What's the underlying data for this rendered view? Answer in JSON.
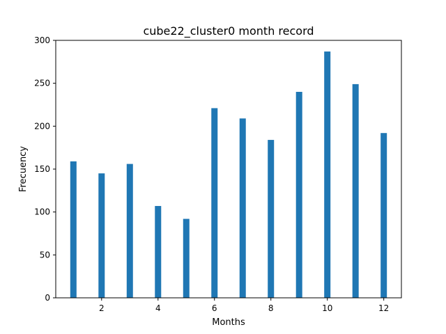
{
  "chart_data": {
    "type": "bar",
    "title": "cube22_cluster0 month record",
    "xlabel": "Months",
    "ylabel": "Frecuency",
    "x": [
      1,
      2,
      3,
      4,
      5,
      6,
      7,
      8,
      9,
      10,
      11,
      12
    ],
    "values": [
      159,
      145,
      156,
      107,
      92,
      221,
      209,
      184,
      240,
      287,
      249,
      192
    ],
    "xlim": [
      0.375,
      12.625
    ],
    "ylim": [
      0,
      300
    ],
    "xticks": [
      2,
      4,
      6,
      8,
      10,
      12
    ],
    "yticks": [
      0,
      50,
      100,
      150,
      200,
      250,
      300
    ],
    "bar_color": "#1f77b4",
    "grid": false,
    "legend": "none"
  }
}
